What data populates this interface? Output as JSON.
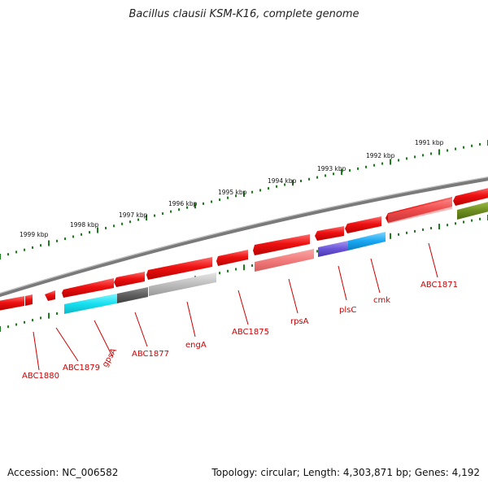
{
  "title": "Bacillus clausii KSM-K16, complete genome",
  "footer": {
    "accession": "Accession: NC_006582",
    "summary": "Topology: circular; Length: 4,303,871 bp; Genes: 4,192"
  },
  "colors": {
    "forward_gene": "#ee1111",
    "cds_light": "#f27b7b",
    "label": "#cc0000",
    "tick": "#1a7f1a",
    "backbone": "#7a7a7a",
    "cyan_feature": "#16e0f0",
    "blue_feature": "#18a6f2",
    "purple_feature": "#6a55d8",
    "dark_grey_feature": "#5e5e5e",
    "light_grey_feature": "#bdbdbd",
    "olive_feature": "#6f8f22"
  },
  "scale_labels": [
    "1999 kbp",
    "1998 kbp",
    "1997 kbp",
    "1996 kbp",
    "1995 kbp",
    "1994 kbp",
    "1993 kbp",
    "1992 kbp",
    "1991 kbp"
  ],
  "gene_labels": [
    "ABC1880",
    "ABC1879",
    "gpsA",
    "ABC1877",
    "engA",
    "ABC1875",
    "rpsA",
    "plsC",
    "cmk",
    "ABC1871"
  ]
}
